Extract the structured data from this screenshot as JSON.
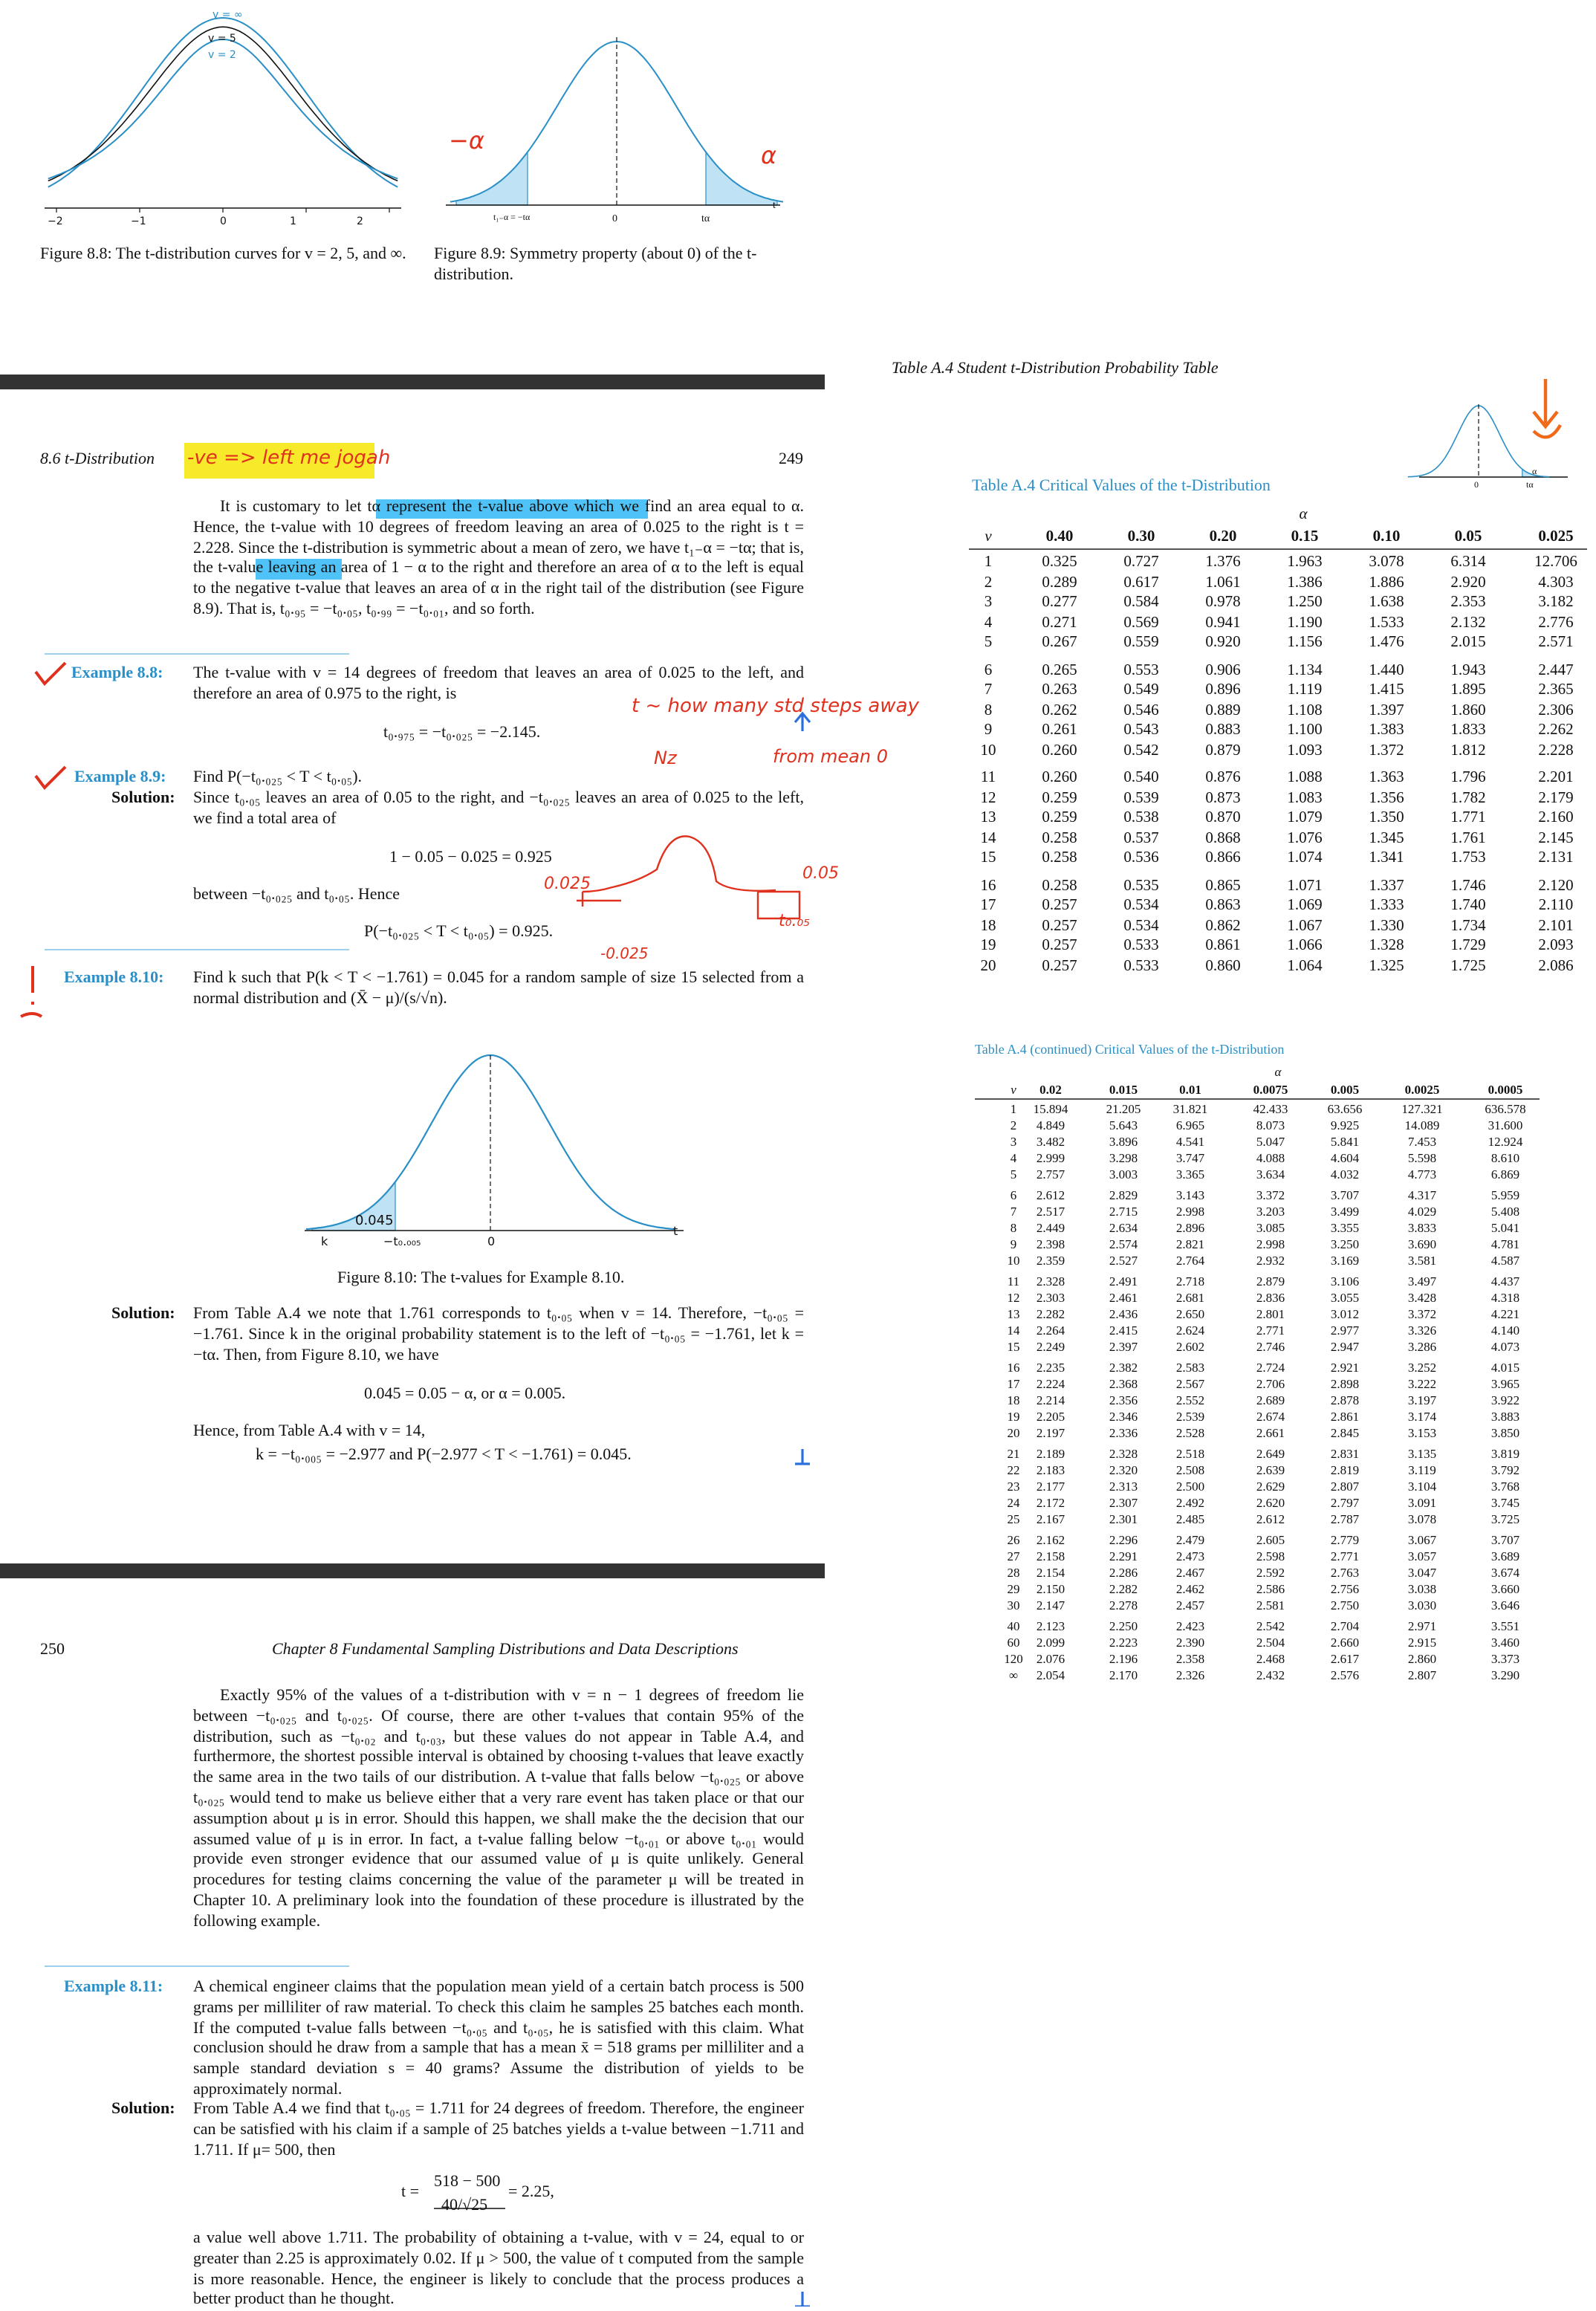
{
  "figure_8_8": {
    "curve_labels": [
      "v = ∞",
      "v = 5",
      "v = 2"
    ],
    "ticks": [
      "−2",
      "−1",
      "0",
      "1",
      "2"
    ],
    "caption": "Figure 8.8: The t-distribution curves for v = 2, 5, and ∞."
  },
  "figure_8_9": {
    "labels": [
      "t₁₋α = −tα",
      "0",
      "tα",
      "t"
    ],
    "caption": "Figure 8.9: Symmetry property (about 0) of the t-distribution."
  },
  "page_249": {
    "header": "8.6 t-Distribution",
    "page_number": "249",
    "paragraph": "It is customary to let tα represent the t-value above which we find an area equal to α. Hence, the t-value with 10 degrees of freedom leaving an area of 0.025 to the right is t = 2.228. Since the t-distribution is symmetric about a mean of zero, we have t₁₋α = −tα; that is, the t-value leaving an area of 1 − α to the right and therefore an area of α to the left is equal to the negative t-value that leaves an area of α in the right tail of the distribution (see Figure 8.9). That is, t₀.₉₅ = −t₀.₀₅, t₀.₉₉ = −t₀.₀₁, and so forth.",
    "example_8_8": {
      "label": "Example 8.8:",
      "text": "The t-value with v = 14 degrees of freedom that leaves an area of 0.025 to the left, and therefore an area of 0.975 to the right, is",
      "equation": "t₀.₉₇₅ = −t₀.₀₂₅ = −2.145."
    },
    "example_8_9": {
      "label": "Example 8.9:",
      "text": "Find P(−t₀.₀₂₅ < T < t₀.₀₅).",
      "solution_label": "Solution:",
      "solution": "Since t₀.₀₅ leaves an area of 0.05 to the right, and −t₀.₀₂₅ leaves an area of 0.025 to the left, we find a total area of",
      "equation_1": "1 − 0.05 − 0.025 = 0.925",
      "between": "between −t₀.₀₂₅ and t₀.₀₅. Hence",
      "equation_2": "P(−t₀.₀₂₅ < T < t₀.₀₅) = 0.925."
    },
    "example_8_10": {
      "label": "Example 8.10:",
      "text": "Find k such that P(k < T < −1.761) = 0.045 for a random sample of size 15 selected from a normal distribution and (X̄ − μ)/(s/√n).",
      "figure_labels": [
        "0.045",
        "k",
        "−t₀.₀₀₅",
        "0",
        "t"
      ],
      "caption": "Figure 8.10: The t-values for Example 8.10.",
      "solution_label": "Solution:",
      "solution": "From Table A.4 we note that 1.761 corresponds to t₀.₀₅ when v = 14. Therefore, −t₀.₀₅ = −1.761. Since k in the original probability statement is to the left of −t₀.₀₅ = −1.761, let k = −tα. Then, from Figure 8.10, we have",
      "equation_1": "0.045 = 0.05 − α, or α = 0.005.",
      "hence": "Hence, from Table A.4 with v = 14,",
      "equation_2": "k = −t₀.₀₀₅ = −2.977 and P(−2.977 < T < −1.761) = 0.045."
    }
  },
  "page_250": {
    "page_number": "250",
    "header": "Chapter 8 Fundamental Sampling Distributions and Data Descriptions",
    "paragraph": "Exactly 95% of the values of a t-distribution with v = n − 1 degrees of freedom lie between −t₀.₀₂₅ and t₀.₀₂₅. Of course, there are other t-values that contain 95% of the distribution, such as −t₀.₀₂ and t₀.₀₃, but these values do not appear in Table A.4, and furthermore, the shortest possible interval is obtained by choosing t-values that leave exactly the same area in the two tails of our distribution. A t-value that falls below −t₀.₀₂₅ or above t₀.₀₂₅ would tend to make us believe either that a very rare event has taken place or that our assumption about μ is in error. Should this happen, we shall make the the decision that our assumed value of μ is in error. In fact, a t-value falling below −t₀.₀₁ or above t₀.₀₁ would provide even stronger evidence that our assumed value of μ is quite unlikely. General procedures for testing claims concerning the value of the parameter μ will be treated in Chapter 10. A preliminary look into the foundation of these procedure is illustrated by the following example.",
    "example_8_11": {
      "label": "Example 8.11:",
      "text": "A chemical engineer claims that the population mean yield of a certain batch process is 500 grams per milliliter of raw material. To check this claim he samples 25 batches each month. If the computed t-value falls between −t₀.₀₅ and t₀.₀₅, he is satisfied with this claim. What conclusion should he draw from a sample that has a mean x̄ = 518 grams per milliliter and a sample standard deviation s = 40 grams? Assume the distribution of yields to be approximately normal.",
      "solution_label": "Solution:",
      "solution": "From Table A.4 we find that t₀.₀₅ = 1.711 for 24 degrees of freedom. Therefore, the engineer can be satisfied with his claim if a sample of 25 batches yields a t-value between −1.711 and 1.711. If μ= 500, then",
      "equation": {
        "lhs": "t =",
        "numerator": "518 − 500",
        "denominator": "40/√25",
        "rhs": "= 2.25,"
      },
      "conclusion": "a value well above 1.711. The probability of obtaining a t-value, with v = 24, equal to or greater than 2.25 is approximately 0.02. If μ > 500, the value of t computed from the sample is more reasonable. Hence, the engineer is likely to conclude that the process produces a better product than he thought."
    }
  },
  "table_page": {
    "header": "Table A.4   Student t-Distribution Probability Table",
    "figure_labels": [
      "0",
      "tα",
      "α"
    ]
  },
  "table_a4": {
    "caption": "Table A.4 Critical Values of the t-Distribution",
    "alpha_label": "α",
    "header": [
      "v",
      "0.40",
      "0.30",
      "0.20",
      "0.15",
      "0.10",
      "0.05",
      "0.025"
    ],
    "rows": [
      [
        "1",
        "0.325",
        "0.727",
        "1.376",
        "1.963",
        "3.078",
        "6.314",
        "12.706"
      ],
      [
        "2",
        "0.289",
        "0.617",
        "1.061",
        "1.386",
        "1.886",
        "2.920",
        "4.303"
      ],
      [
        "3",
        "0.277",
        "0.584",
        "0.978",
        "1.250",
        "1.638",
        "2.353",
        "3.182"
      ],
      [
        "4",
        "0.271",
        "0.569",
        "0.941",
        "1.190",
        "1.533",
        "2.132",
        "2.776"
      ],
      [
        "5",
        "0.267",
        "0.559",
        "0.920",
        "1.156",
        "1.476",
        "2.015",
        "2.571"
      ],
      [
        "6",
        "0.265",
        "0.553",
        "0.906",
        "1.134",
        "1.440",
        "1.943",
        "2.447"
      ],
      [
        "7",
        "0.263",
        "0.549",
        "0.896",
        "1.119",
        "1.415",
        "1.895",
        "2.365"
      ],
      [
        "8",
        "0.262",
        "0.546",
        "0.889",
        "1.108",
        "1.397",
        "1.860",
        "2.306"
      ],
      [
        "9",
        "0.261",
        "0.543",
        "0.883",
        "1.100",
        "1.383",
        "1.833",
        "2.262"
      ],
      [
        "10",
        "0.260",
        "0.542",
        "0.879",
        "1.093",
        "1.372",
        "1.812",
        "2.228"
      ],
      [
        "11",
        "0.260",
        "0.540",
        "0.876",
        "1.088",
        "1.363",
        "1.796",
        "2.201"
      ],
      [
        "12",
        "0.259",
        "0.539",
        "0.873",
        "1.083",
        "1.356",
        "1.782",
        "2.179"
      ],
      [
        "13",
        "0.259",
        "0.538",
        "0.870",
        "1.079",
        "1.350",
        "1.771",
        "2.160"
      ],
      [
        "14",
        "0.258",
        "0.537",
        "0.868",
        "1.076",
        "1.345",
        "1.761",
        "2.145"
      ],
      [
        "15",
        "0.258",
        "0.536",
        "0.866",
        "1.074",
        "1.341",
        "1.753",
        "2.131"
      ],
      [
        "16",
        "0.258",
        "0.535",
        "0.865",
        "1.071",
        "1.337",
        "1.746",
        "2.120"
      ],
      [
        "17",
        "0.257",
        "0.534",
        "0.863",
        "1.069",
        "1.333",
        "1.740",
        "2.110"
      ],
      [
        "18",
        "0.257",
        "0.534",
        "0.862",
        "1.067",
        "1.330",
        "1.734",
        "2.101"
      ],
      [
        "19",
        "0.257",
        "0.533",
        "0.861",
        "1.066",
        "1.328",
        "1.729",
        "2.093"
      ],
      [
        "20",
        "0.257",
        "0.533",
        "0.860",
        "1.064",
        "1.325",
        "1.725",
        "2.086"
      ]
    ]
  },
  "table_a4_continued": {
    "caption": "Table A.4 (continued) Critical Values of the t-Distribution",
    "alpha_label": "α",
    "header": [
      "v",
      "0.02",
      "0.015",
      "0.01",
      "0.0075",
      "0.005",
      "0.0025",
      "0.0005"
    ],
    "rows": [
      [
        "1",
        "15.894",
        "21.205",
        "31.821",
        "42.433",
        "63.656",
        "127.321",
        "636.578"
      ],
      [
        "2",
        "4.849",
        "5.643",
        "6.965",
        "8.073",
        "9.925",
        "14.089",
        "31.600"
      ],
      [
        "3",
        "3.482",
        "3.896",
        "4.541",
        "5.047",
        "5.841",
        "7.453",
        "12.924"
      ],
      [
        "4",
        "2.999",
        "3.298",
        "3.747",
        "4.088",
        "4.604",
        "5.598",
        "8.610"
      ],
      [
        "5",
        "2.757",
        "3.003",
        "3.365",
        "3.634",
        "4.032",
        "4.773",
        "6.869"
      ],
      [
        "6",
        "2.612",
        "2.829",
        "3.143",
        "3.372",
        "3.707",
        "4.317",
        "5.959"
      ],
      [
        "7",
        "2.517",
        "2.715",
        "2.998",
        "3.203",
        "3.499",
        "4.029",
        "5.408"
      ],
      [
        "8",
        "2.449",
        "2.634",
        "2.896",
        "3.085",
        "3.355",
        "3.833",
        "5.041"
      ],
      [
        "9",
        "2.398",
        "2.574",
        "2.821",
        "2.998",
        "3.250",
        "3.690",
        "4.781"
      ],
      [
        "10",
        "2.359",
        "2.527",
        "2.764",
        "2.932",
        "3.169",
        "3.581",
        "4.587"
      ],
      [
        "11",
        "2.328",
        "2.491",
        "2.718",
        "2.879",
        "3.106",
        "3.497",
        "4.437"
      ],
      [
        "12",
        "2.303",
        "2.461",
        "2.681",
        "2.836",
        "3.055",
        "3.428",
        "4.318"
      ],
      [
        "13",
        "2.282",
        "2.436",
        "2.650",
        "2.801",
        "3.012",
        "3.372",
        "4.221"
      ],
      [
        "14",
        "2.264",
        "2.415",
        "2.624",
        "2.771",
        "2.977",
        "3.326",
        "4.140"
      ],
      [
        "15",
        "2.249",
        "2.397",
        "2.602",
        "2.746",
        "2.947",
        "3.286",
        "4.073"
      ],
      [
        "16",
        "2.235",
        "2.382",
        "2.583",
        "2.724",
        "2.921",
        "3.252",
        "4.015"
      ],
      [
        "17",
        "2.224",
        "2.368",
        "2.567",
        "2.706",
        "2.898",
        "3.222",
        "3.965"
      ],
      [
        "18",
        "2.214",
        "2.356",
        "2.552",
        "2.689",
        "2.878",
        "3.197",
        "3.922"
      ],
      [
        "19",
        "2.205",
        "2.346",
        "2.539",
        "2.674",
        "2.861",
        "3.174",
        "3.883"
      ],
      [
        "20",
        "2.197",
        "2.336",
        "2.528",
        "2.661",
        "2.845",
        "3.153",
        "3.850"
      ],
      [
        "21",
        "2.189",
        "2.328",
        "2.518",
        "2.649",
        "2.831",
        "3.135",
        "3.819"
      ],
      [
        "22",
        "2.183",
        "2.320",
        "2.508",
        "2.639",
        "2.819",
        "3.119",
        "3.792"
      ],
      [
        "23",
        "2.177",
        "2.313",
        "2.500",
        "2.629",
        "2.807",
        "3.104",
        "3.768"
      ],
      [
        "24",
        "2.172",
        "2.307",
        "2.492",
        "2.620",
        "2.797",
        "3.091",
        "3.745"
      ],
      [
        "25",
        "2.167",
        "2.301",
        "2.485",
        "2.612",
        "2.787",
        "3.078",
        "3.725"
      ],
      [
        "26",
        "2.162",
        "2.296",
        "2.479",
        "2.605",
        "2.779",
        "3.067",
        "3.707"
      ],
      [
        "27",
        "2.158",
        "2.291",
        "2.473",
        "2.598",
        "2.771",
        "3.057",
        "3.689"
      ],
      [
        "28",
        "2.154",
        "2.286",
        "2.467",
        "2.592",
        "2.763",
        "3.047",
        "3.674"
      ],
      [
        "29",
        "2.150",
        "2.282",
        "2.462",
        "2.586",
        "2.756",
        "3.038",
        "3.660"
      ],
      [
        "30",
        "2.147",
        "2.278",
        "2.457",
        "2.581",
        "2.750",
        "3.030",
        "3.646"
      ],
      [
        "40",
        "2.123",
        "2.250",
        "2.423",
        "2.542",
        "2.704",
        "2.971",
        "3.551"
      ],
      [
        "60",
        "2.099",
        "2.223",
        "2.390",
        "2.504",
        "2.660",
        "2.915",
        "3.460"
      ],
      [
        "120",
        "2.076",
        "2.196",
        "2.358",
        "2.468",
        "2.617",
        "2.860",
        "3.373"
      ],
      [
        "∞",
        "2.054",
        "2.170",
        "2.326",
        "2.432",
        "2.576",
        "2.807",
        "3.290"
      ]
    ]
  },
  "handwritten_notes": [
    "−α",
    "α",
    "-ve => left me jogah",
    "t ~ how many std steps away",
    "from mean 0",
    "Nz",
    "0.025",
    "0.05",
    "t₀.₀₅",
    "-0.025"
  ]
}
